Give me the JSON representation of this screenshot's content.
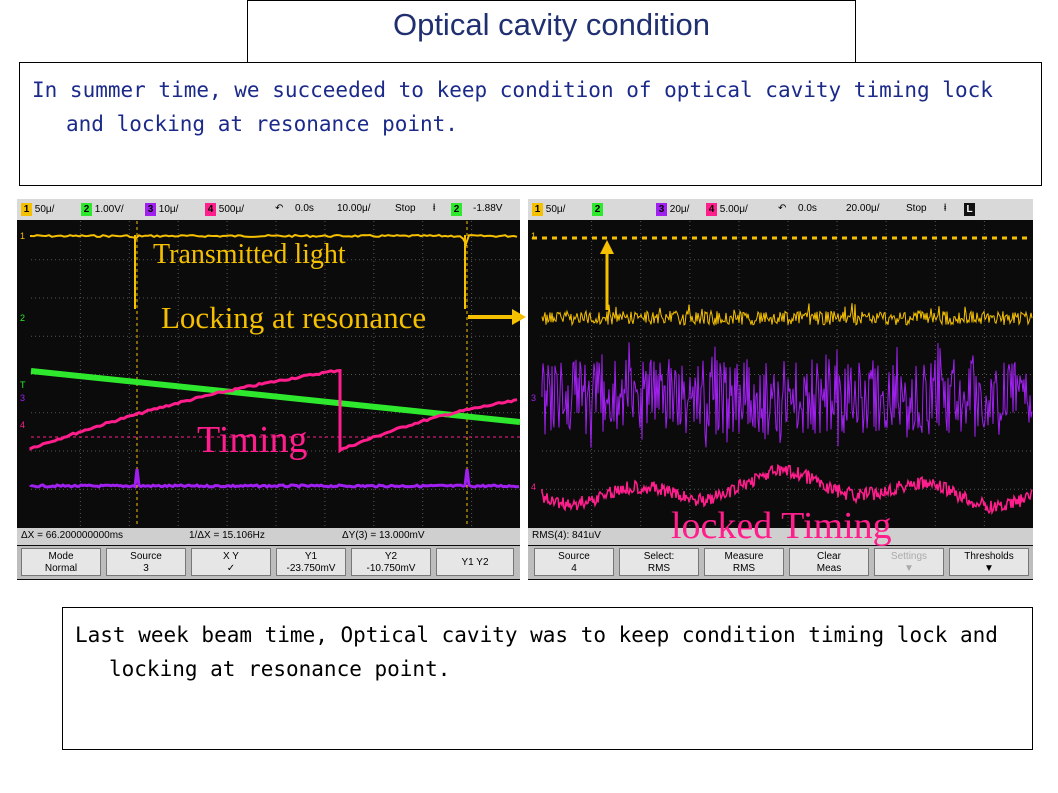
{
  "title": "Optical cavity condition",
  "summer_text": "In summer time, we succeeded to keep condition of optical cavity timing lock and locking at resonance point.",
  "lastweek_text": "Last week beam time, Optical cavity was to keep condition timing lock and locking at resonance point.",
  "annotations": {
    "transmitted": "Transmitted light",
    "locking": "Locking at resonance",
    "timing": "Timing",
    "locked_timing": "locked Timing"
  },
  "colors": {
    "ch1": "#f5c000",
    "ch2": "#2ee82e",
    "ch3": "#a020f0",
    "ch4": "#ff1e8c"
  },
  "scope_left": {
    "status": {
      "ch1": "1",
      "ch1_scale": "50μ/",
      "ch2": "2",
      "ch2_scale": "1.00V/",
      "ch3": "3",
      "ch3_scale": "10μ/",
      "ch4": "4",
      "ch4_scale": "500μ/",
      "delay": "0.0s",
      "timebase": "10.00μ/",
      "run": "Stop",
      "trig_ch": "2",
      "trig_level": "-1.88V"
    },
    "meas": {
      "dx": "ΔX = 66.200000000ms",
      "inv_dx": "1/ΔX = 15.106Hz",
      "dy": "ΔY(3) = 13.000mV"
    },
    "keys": [
      {
        "top": "Mode",
        "bottom": "Normal"
      },
      {
        "top": "Source",
        "bottom": "3"
      },
      {
        "top": "X      Y",
        "bottom": "✓"
      },
      {
        "top": "Y1",
        "bottom": "-23.750mV"
      },
      {
        "top": "Y2",
        "bottom": "-10.750mV"
      },
      {
        "top": "Y1 Y2",
        "bottom": ""
      }
    ]
  },
  "scope_right": {
    "status": {
      "ch1": "1",
      "ch1_scale": "50μ/",
      "ch2": "2",
      "ch3": "3",
      "ch3_scale": "20μ/",
      "ch4": "4",
      "ch4_scale": "5.00μ/",
      "delay": "0.0s",
      "timebase": "20.00μ/",
      "run": "Stop",
      "trig_ch": "L"
    },
    "meas": {
      "rms": "RMS(4): 841uV"
    },
    "keys": [
      {
        "top": "Source",
        "bottom": "4"
      },
      {
        "top": "Select:",
        "bottom": "RMS"
      },
      {
        "top": "Measure",
        "bottom": "RMS"
      },
      {
        "top": "Clear",
        "bottom": "Meas"
      },
      {
        "top": "Settings",
        "bottom": ""
      },
      {
        "top": "Thresholds",
        "bottom": ""
      }
    ]
  }
}
